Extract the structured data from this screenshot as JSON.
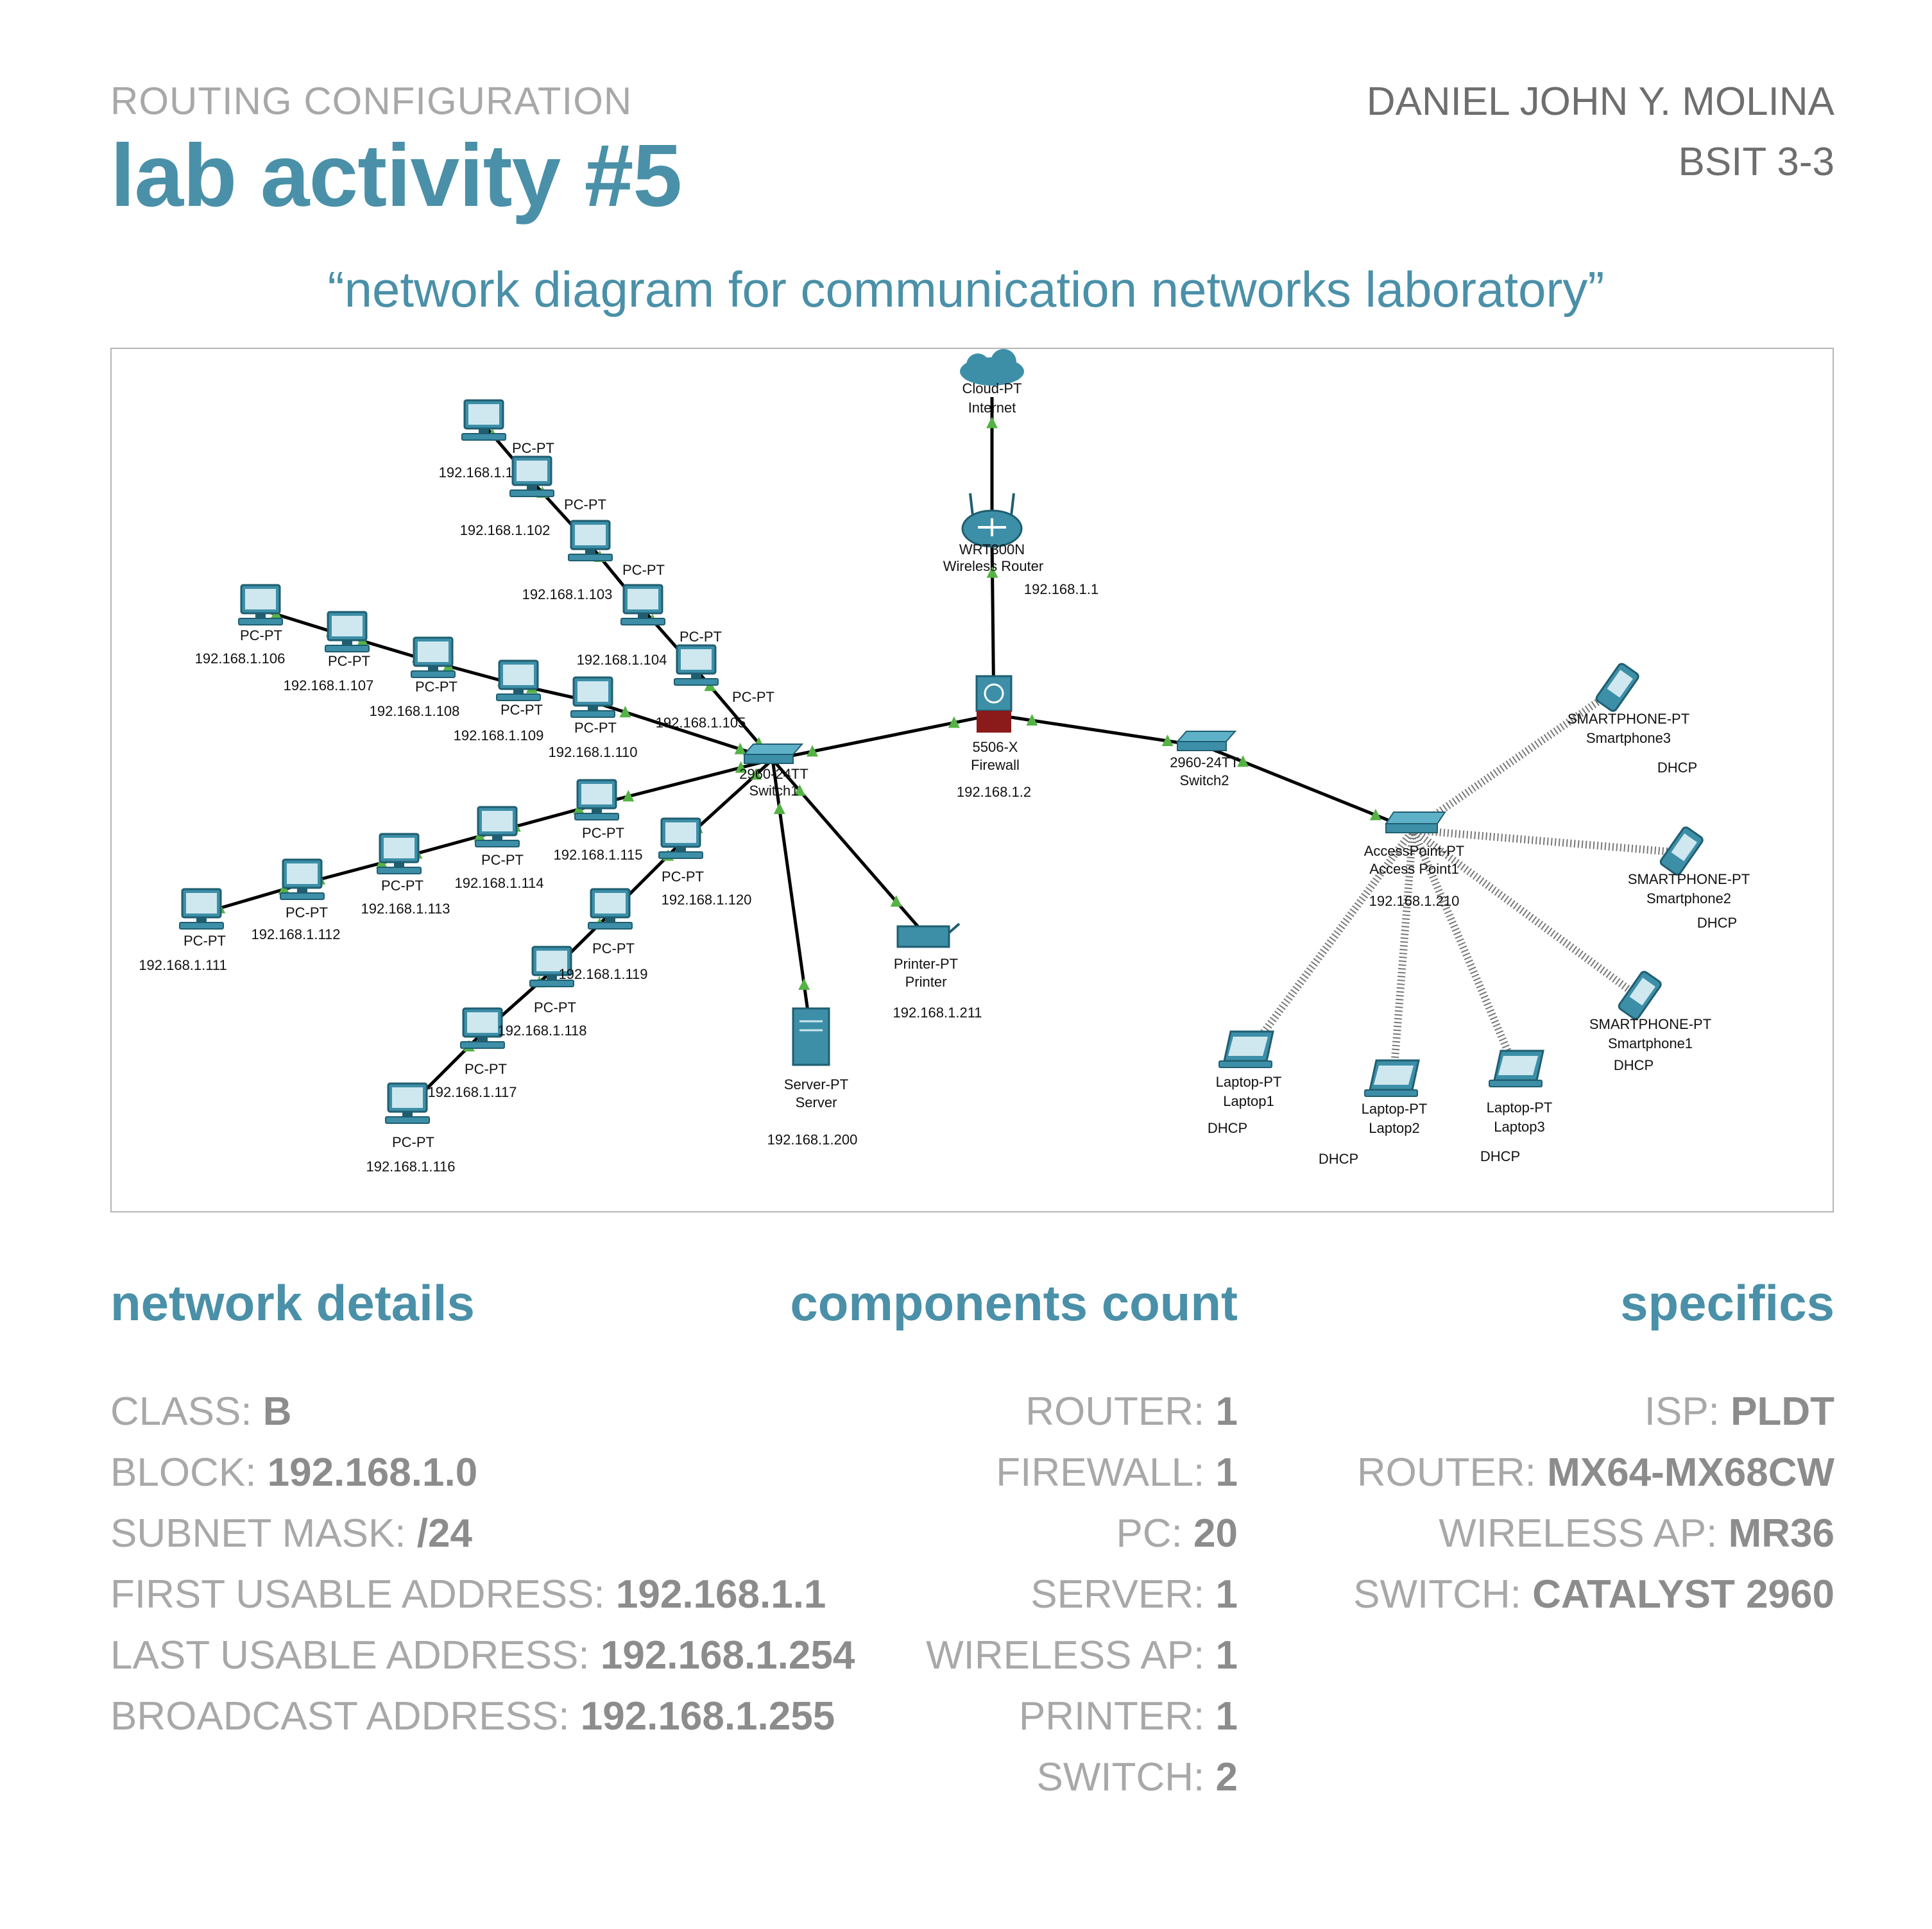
{
  "header": {
    "category": "ROUTING CONFIGURATION",
    "title": "lab activity #5",
    "author": "DANIEL JOHN Y. MOLINA",
    "section": "BSIT 3-3"
  },
  "subtitle": "“network diagram for communication networks laboratory”",
  "diagram": {
    "cloud": {
      "type": "Cloud-PT",
      "name": "Internet"
    },
    "router": {
      "type": "WRT300N",
      "name": "Wireless Router",
      "ip": "192.168.1.1"
    },
    "firewall": {
      "type": "5506-X",
      "name": "Firewall",
      "ip": "192.168.1.2"
    },
    "switch1": {
      "type": "2960-24TT",
      "name": "Switch1"
    },
    "switch2": {
      "type": "2960-24TT",
      "name": "Switch2"
    },
    "access_point": {
      "type": "AccessPoint-PT",
      "name": "Access Point1",
      "ip": "192.168.1.210"
    },
    "server": {
      "type": "Server-PT",
      "name": "Server",
      "ip": "192.168.1.200"
    },
    "printer": {
      "type": "Printer-PT",
      "name": "Printer",
      "ip": "192.168.1.211"
    },
    "pc_type": "PC-PT",
    "pcs": [
      {
        "ip": "192.168.1.101"
      },
      {
        "ip": "192.168.1.102"
      },
      {
        "ip": "192.168.1.103"
      },
      {
        "ip": "192.168.1.104"
      },
      {
        "ip": "192.168.1.105"
      },
      {
        "ip": "192.168.1.106"
      },
      {
        "ip": "192.168.1.107"
      },
      {
        "ip": "192.168.1.108"
      },
      {
        "ip": "192.168.1.109"
      },
      {
        "ip": "192.168.1.110"
      },
      {
        "ip": "192.168.1.111"
      },
      {
        "ip": "192.168.1.112"
      },
      {
        "ip": "192.168.1.113"
      },
      {
        "ip": "192.168.1.114"
      },
      {
        "ip": "192.168.1.115"
      },
      {
        "ip": "192.168.1.116"
      },
      {
        "ip": "192.168.1.117"
      },
      {
        "ip": "192.168.1.118"
      },
      {
        "ip": "192.168.1.119"
      },
      {
        "ip": "192.168.1.120"
      }
    ],
    "smartphone_type": "SMARTPHONE-PT",
    "smartphones": [
      {
        "name": "Smartphone1",
        "addr": "DHCP"
      },
      {
        "name": "Smartphone2",
        "addr": "DHCP"
      },
      {
        "name": "Smartphone3",
        "addr": "DHCP"
      }
    ],
    "laptop_type": "Laptop-PT",
    "laptops": [
      {
        "name": "Laptop1",
        "addr": "DHCP"
      },
      {
        "name": "Laptop2",
        "addr": "DHCP"
      },
      {
        "name": "Laptop3",
        "addr": "DHCP"
      }
    ],
    "colors": {
      "device": "#3d8fa8",
      "link": "#000000",
      "arrow": "#55b245",
      "firewall_red": "#8b1a1a"
    }
  },
  "network_details": {
    "heading": "network details",
    "rows": [
      {
        "label": "CLASS: ",
        "value": "B"
      },
      {
        "label": "BLOCK: ",
        "value": "192.168.1.0"
      },
      {
        "label": "SUBNET MASK: ",
        "value": "/24"
      },
      {
        "label": "FIRST USABLE ADDRESS: ",
        "value": "192.168.1.1"
      },
      {
        "label": "LAST USABLE ADDRESS: ",
        "value": "192.168.1.254"
      },
      {
        "label": "BROADCAST ADDRESS: ",
        "value": "192.168.1.255"
      }
    ]
  },
  "components_count": {
    "heading": "components count",
    "rows": [
      {
        "label": "ROUTER: ",
        "value": "1"
      },
      {
        "label": "FIREWALL: ",
        "value": "1"
      },
      {
        "label": "PC: ",
        "value": "20"
      },
      {
        "label": "SERVER: ",
        "value": "1"
      },
      {
        "label": "WIRELESS AP: ",
        "value": "1"
      },
      {
        "label": "PRINTER: ",
        "value": "1"
      },
      {
        "label": "SWITCH: ",
        "value": "2"
      }
    ]
  },
  "specifics": {
    "heading": "specifics",
    "rows": [
      {
        "label": "ISP: ",
        "value": "PLDT"
      },
      {
        "label": "ROUTER: ",
        "value": "MX64-MX68CW"
      },
      {
        "label": "WIRELESS AP: ",
        "value": "MR36"
      },
      {
        "label": "SWITCH: ",
        "value": "CATALYST 2960"
      }
    ]
  }
}
